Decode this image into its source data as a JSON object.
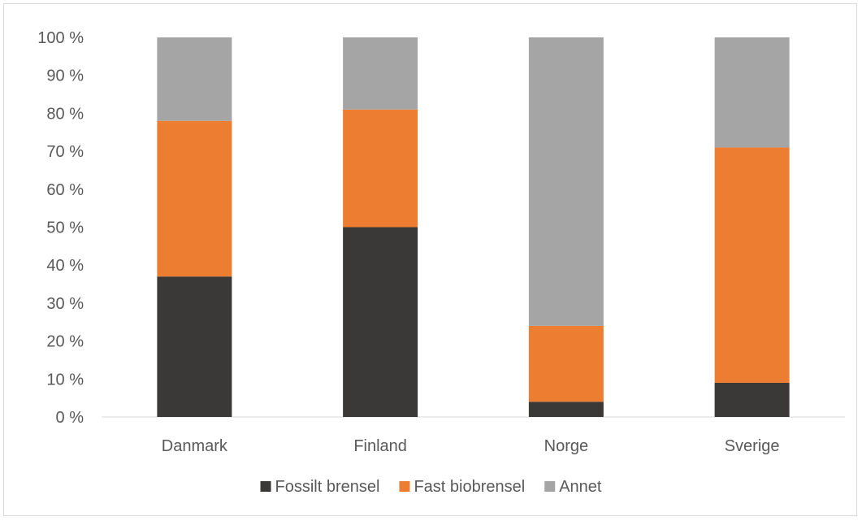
{
  "chart_data": {
    "type": "bar",
    "stacked": true,
    "orientation": "vertical",
    "percent_stacked": true,
    "categories": [
      "Danmark",
      "Finland",
      "Norge",
      "Sverige"
    ],
    "series": [
      {
        "name": "Fossilt brensel",
        "values": [
          37,
          50,
          4,
          9
        ],
        "color": "#3b3838"
      },
      {
        "name": "Fast biobrensel",
        "values": [
          41,
          31,
          20,
          62
        ],
        "color": "#ed7d31"
      },
      {
        "name": "Annet",
        "values": [
          22,
          19,
          76,
          29
        ],
        "color": "#a5a5a5"
      }
    ],
    "ylim": [
      0,
      100
    ],
    "yticks": [
      "0 %",
      "10 %",
      "20 %",
      "30 %",
      "40 %",
      "50 %",
      "60 %",
      "70 %",
      "80 %",
      "90 %",
      "100 %"
    ],
    "grid": false,
    "legend": "bottom"
  }
}
